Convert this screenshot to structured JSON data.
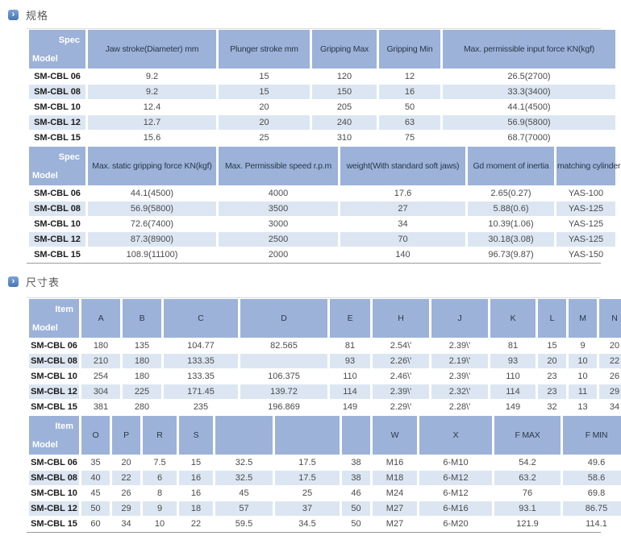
{
  "sections": {
    "spec": {
      "title": "规格"
    },
    "dims": {
      "title": "尺寸表"
    }
  },
  "icons": {
    "section_arrow": "›"
  },
  "colors": {
    "header_bg": "#9cb2d9",
    "row_alt": "#dce6f2",
    "accent_icon": "#4675b2"
  },
  "spec_table": {
    "part1": {
      "corner": {
        "top": "Spec",
        "bottom": "Model"
      },
      "headers": [
        "Jaw stroke(Diameter) mm",
        "Plunger stroke mm",
        "Gripping Max",
        "Gripping Min",
        "Max. permissible input force KN(kgf)"
      ],
      "rows": [
        {
          "model": "SM-CBL 06",
          "values": [
            "9.2",
            "15",
            "120",
            "12",
            "26.5(2700)"
          ]
        },
        {
          "model": "SM-CBL 08",
          "values": [
            "9.2",
            "15",
            "150",
            "16",
            "33.3(3400)"
          ]
        },
        {
          "model": "SM-CBL 10",
          "values": [
            "12.4",
            "20",
            "205",
            "50",
            "44.1(4500)"
          ]
        },
        {
          "model": "SM-CBL 12",
          "values": [
            "12.7",
            "20",
            "240",
            "63",
            "56.9(5800)"
          ]
        },
        {
          "model": "SM-CBL 15",
          "values": [
            "15.6",
            "25",
            "310",
            "75",
            "68.7(7000)"
          ]
        }
      ]
    },
    "part2": {
      "corner": {
        "top": "Spec",
        "bottom": "Model"
      },
      "headers": [
        "Max. static gripping force KN(kgf)",
        "Max. Permissible speed r.p.m",
        "weight(With standard soft jaws)",
        "Gd moment of inertia",
        "matching cylinder"
      ],
      "rows": [
        {
          "model": "SM-CBL 06",
          "values": [
            "44.1(4500)",
            "4000",
            "17.6",
            "2.65(0.27)",
            "YAS-100"
          ]
        },
        {
          "model": "SM-CBL 08",
          "values": [
            "56.9(5800)",
            "3500",
            "27",
            "5.88(0.6)",
            "YAS-125"
          ]
        },
        {
          "model": "SM-CBL 10",
          "values": [
            "72.6(7400)",
            "3000",
            "34",
            "10.39(1.06)",
            "YAS-125"
          ]
        },
        {
          "model": "SM-CBL 12",
          "values": [
            "87.3(8900)",
            "2500",
            "70",
            "30.18(3.08)",
            "YAS-125"
          ]
        },
        {
          "model": "SM-CBL 15",
          "values": [
            "108.9(11100)",
            "2000",
            "140",
            "96.73(9.87)",
            "YAS-150"
          ]
        }
      ]
    }
  },
  "dim_table": {
    "part1": {
      "corner": {
        "top": "Item",
        "bottom": "Model"
      },
      "headers": [
        "A",
        "B",
        "C",
        "D",
        "E",
        "H",
        "J",
        "K",
        "L",
        "M",
        "N"
      ],
      "rows": [
        {
          "model": "SM-CBL 06",
          "values": [
            "180",
            "135",
            "104.77",
            "82.565",
            "81",
            "2.54\\'",
            "2.39\\'",
            "81",
            "15",
            "9",
            "20"
          ]
        },
        {
          "model": "SM-CBL 08",
          "values": [
            "210",
            "180",
            "133.35",
            "",
            "93",
            "2.26\\'",
            "2.19\\'",
            "93",
            "20",
            "10",
            "22"
          ]
        },
        {
          "model": "SM-CBL 10",
          "values": [
            "254",
            "180",
            "133.35",
            "106.375",
            "110",
            "2.46\\'",
            "2.39\\'",
            "110",
            "23",
            "10",
            "26"
          ]
        },
        {
          "model": "SM-CBL 12",
          "values": [
            "304",
            "225",
            "171.45",
            "139.72",
            "114",
            "2.39\\'",
            "2.32\\'",
            "114",
            "23",
            "11",
            "29"
          ]
        },
        {
          "model": "SM-CBL 15",
          "values": [
            "381",
            "280",
            "235",
            "196.869",
            "149",
            "2.29\\'",
            "2.28\\'",
            "149",
            "32",
            "13",
            "34"
          ]
        }
      ]
    },
    "part2": {
      "corner": {
        "top": "Item",
        "bottom": "Model"
      },
      "headers": [
        "O",
        "P",
        "R",
        "S",
        "",
        "",
        "",
        "W",
        "X",
        "F MAX",
        "F MIN"
      ],
      "rows": [
        {
          "model": "SM-CBL 06",
          "values": [
            "35",
            "20",
            "7.5",
            "15",
            "32.5",
            "17.5",
            "38",
            "M16",
            "6-M10",
            "54.2",
            "49.6"
          ]
        },
        {
          "model": "SM-CBL 08",
          "values": [
            "40",
            "22",
            "6",
            "16",
            "32.5",
            "17.5",
            "38",
            "M18",
            "6-M12",
            "63.2",
            "58.6"
          ]
        },
        {
          "model": "SM-CBL 10",
          "values": [
            "45",
            "26",
            "8",
            "16",
            "45",
            "25",
            "46",
            "M24",
            "6-M12",
            "76",
            "69.8"
          ]
        },
        {
          "model": "SM-CBL 12",
          "values": [
            "50",
            "29",
            "9",
            "18",
            "57",
            "37",
            "50",
            "M27",
            "6-M16",
            "93.1",
            "86.75"
          ]
        },
        {
          "model": "SM-CBL 15",
          "values": [
            "60",
            "34",
            "10",
            "22",
            "59.5",
            "34.5",
            "50",
            "M27",
            "6-M20",
            "121.9",
            "114.1"
          ]
        }
      ]
    }
  }
}
